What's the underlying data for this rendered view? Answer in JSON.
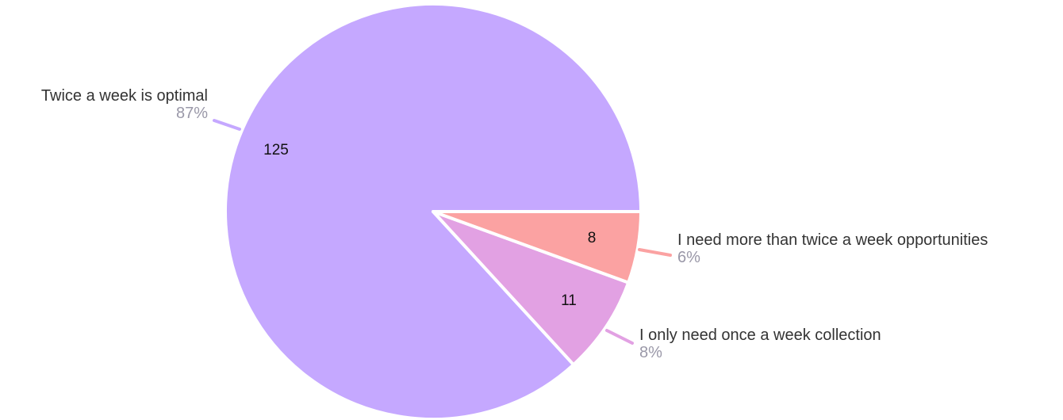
{
  "chart_data": {
    "type": "pie",
    "title": "",
    "slices": [
      {
        "label": "Twice a week is optimal",
        "value": 125,
        "percent_label": "87%",
        "color": "#c5a8ff"
      },
      {
        "label": "I only need once a week collection",
        "value": 11,
        "percent_label": "8%",
        "color": "#e2a1e3"
      },
      {
        "label": "I need more than twice a week opportunities",
        "value": 8,
        "percent_label": "6%",
        "color": "#fba2a2"
      }
    ]
  }
}
